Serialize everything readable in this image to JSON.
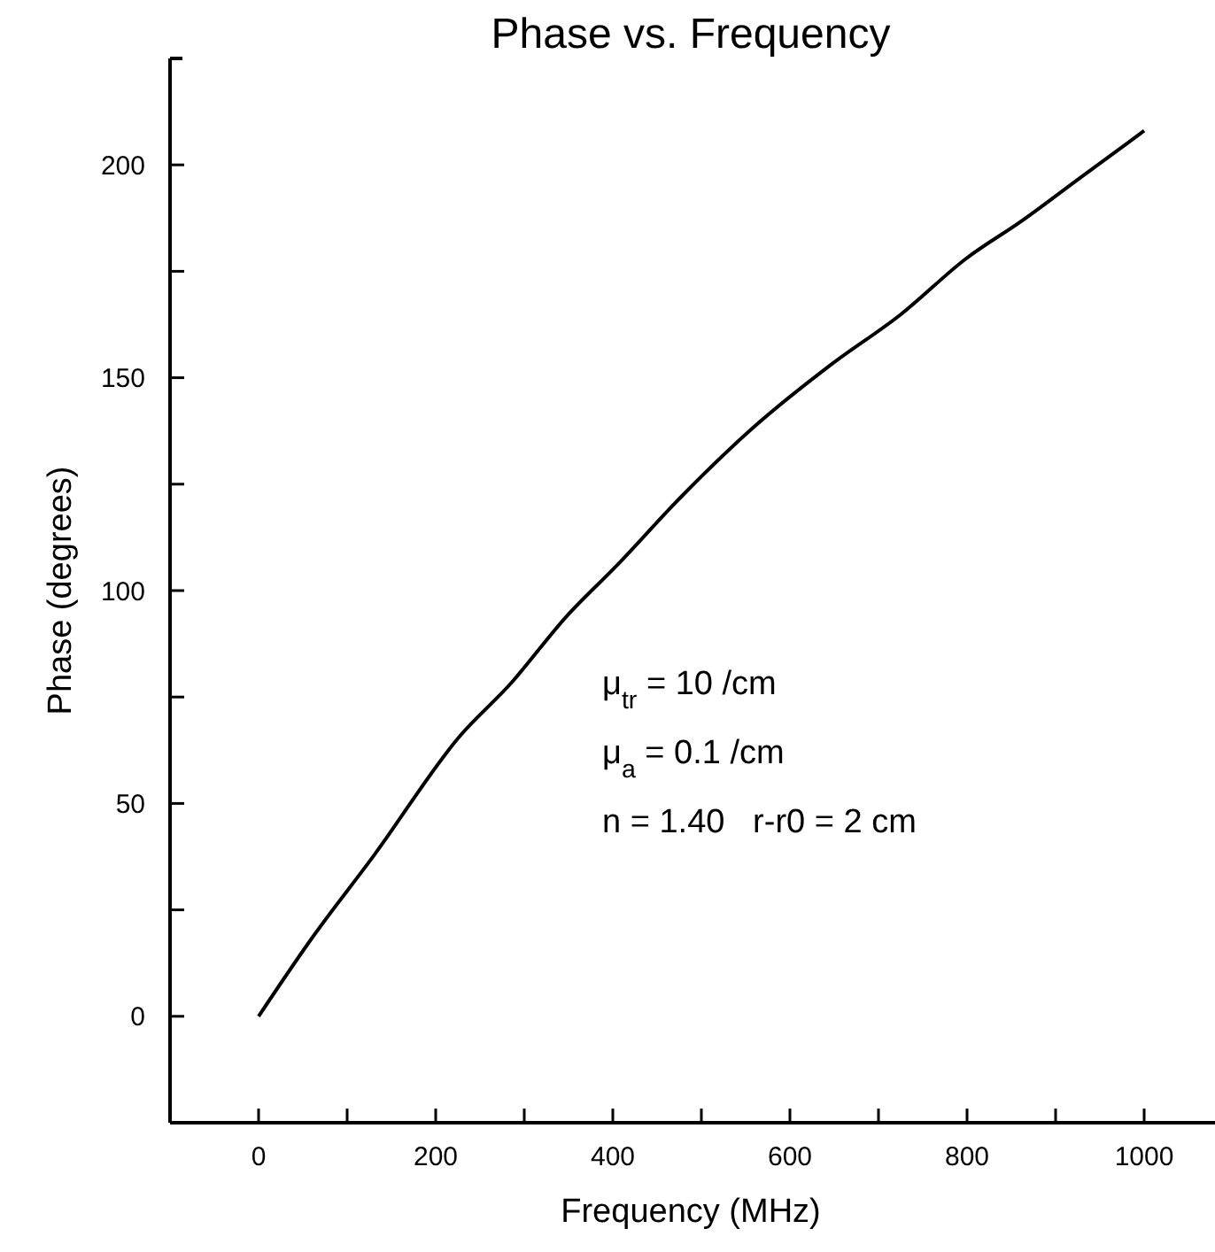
{
  "chart_data": {
    "type": "line",
    "title": "Phase vs. Frequency",
    "xlabel": "Frequency (MHz)",
    "ylabel": "Phase (degrees)",
    "x": [
      0,
      59,
      131,
      228,
      284,
      348,
      405,
      477,
      557,
      646,
      726,
      799,
      863,
      928,
      1000
    ],
    "series": [
      {
        "color": "#000000",
        "values": [
          0,
          18,
          38,
          66,
          78,
          94,
          106,
          122,
          138,
          153,
          165,
          178,
          187,
          197,
          208
        ]
      }
    ],
    "xlim": [
      -100,
      1080
    ],
    "ylim": [
      -25,
      225
    ],
    "xticks": [
      0,
      {
        "value": 100,
        "label": null
      },
      200,
      {
        "value": 300,
        "label": null
      },
      400,
      {
        "value": 500,
        "label": null
      },
      600,
      {
        "value": 700,
        "label": null
      },
      800,
      {
        "value": 900,
        "label": null
      },
      1000
    ],
    "yticks": [
      0,
      {
        "value": 25,
        "label": null
      },
      50,
      {
        "value": 75,
        "label": null
      },
      100,
      {
        "value": 125,
        "label": null
      },
      150,
      {
        "value": 175,
        "label": null
      },
      200
    ],
    "annotations": [
      "μ$_{tr}$ = 10 /cm",
      "μ$_{a}$ = 0.1 /cm",
      "n = 1.40   r-r0 = 2 cm"
    ],
    "grid": false,
    "marker": "none",
    "line_style": "solid"
  }
}
